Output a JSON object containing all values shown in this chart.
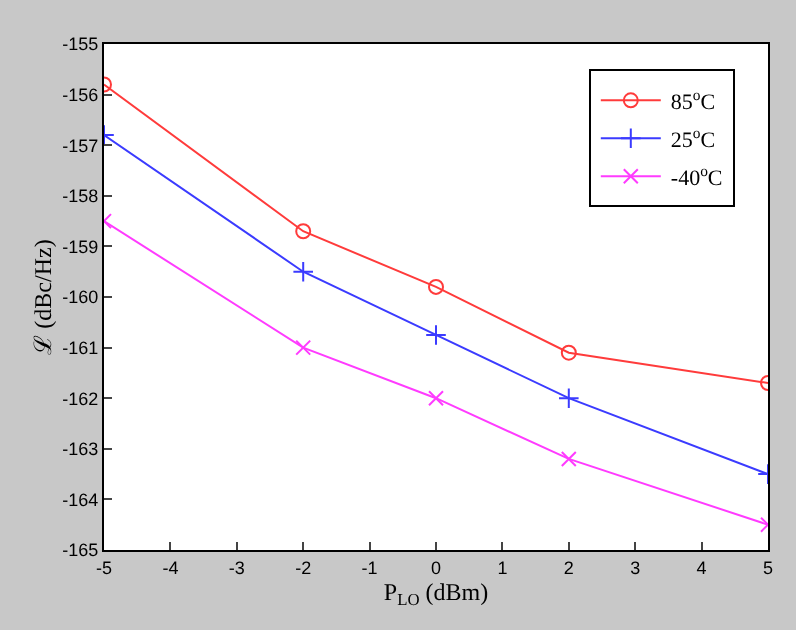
{
  "chart_data": {
    "type": "line",
    "xlabel": "P$_{LO}$ (dBm)",
    "ylabel": "ℒ (dBc/Hz)",
    "x": [
      -5,
      -2,
      0,
      2,
      5
    ],
    "series": [
      {
        "name": "85$^{o}$C",
        "color": "#ff3b3b",
        "marker": "circle",
        "values": [
          -155.8,
          -158.7,
          -159.8,
          -161.1,
          -161.7
        ]
      },
      {
        "name": "25$^{o}$C",
        "color": "#3b3bff",
        "marker": "cross",
        "values": [
          -156.8,
          -159.5,
          -160.75,
          -162.0,
          -163.5
        ]
      },
      {
        "name": "-40$^{o}$C",
        "color": "#ff3bff",
        "marker": "x",
        "values": [
          -158.5,
          -161.0,
          -162.0,
          -163.2,
          -164.5
        ]
      }
    ],
    "xlim": [
      -5,
      5
    ],
    "xticks": [
      -5,
      -4,
      -3,
      -2,
      -1,
      0,
      1,
      2,
      3,
      4,
      {
        "value": 5,
        "label": "5"
      }
    ],
    "ylim": [
      -165,
      -155
    ],
    "yticks": [
      -165,
      -164,
      -163,
      -162,
      -161,
      -160,
      -159,
      -158,
      -157,
      -156,
      -155
    ],
    "legend": "top right",
    "line_style": "solid"
  }
}
